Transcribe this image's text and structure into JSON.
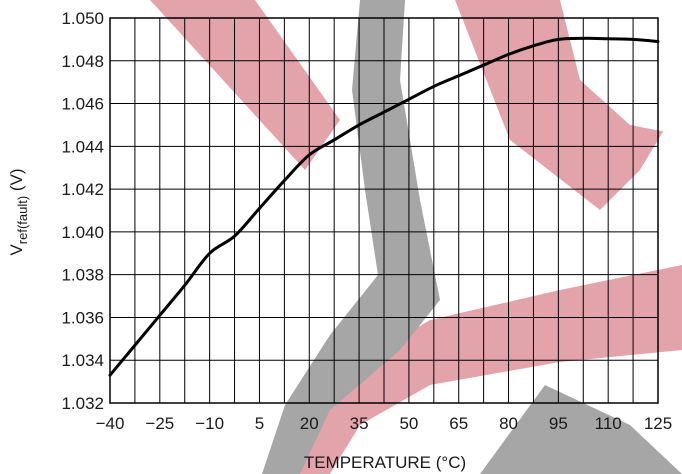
{
  "chart_data": {
    "type": "line",
    "xlabel": "TEMPERATURE (°C)",
    "ylabel_main": "V",
    "ylabel_sub": "ref(fault)",
    "ylabel_unit": " (V)",
    "xlim": [
      -40,
      125
    ],
    "ylim": [
      1.032,
      1.05
    ],
    "x_ticks": [
      -40,
      -25,
      -10,
      5,
      20,
      35,
      50,
      65,
      80,
      95,
      110,
      125
    ],
    "x_tick_labels": [
      "−40",
      "−25",
      "−10",
      "5",
      "20",
      "35",
      "50",
      "65",
      "80",
      "95",
      "110",
      "125"
    ],
    "y_ticks": [
      1.032,
      1.034,
      1.036,
      1.038,
      1.04,
      1.042,
      1.044,
      1.046,
      1.048,
      1.05
    ],
    "y_tick_labels": [
      "1.032",
      "1.034",
      "1.036",
      "1.038",
      "1.040",
      "1.042",
      "1.044",
      "1.046",
      "1.048",
      "1.050"
    ],
    "x_minor_per_major": 2,
    "grid": true,
    "series": [
      {
        "color": "#000000",
        "x": [
          -40,
          -32.5,
          -25,
          -17.5,
          -10,
          -2.5,
          5,
          12.5,
          20,
          27.5,
          35,
          42.5,
          50,
          57.5,
          65,
          72.5,
          80,
          87.5,
          95,
          102.5,
          110,
          117.5,
          125
        ],
        "y": [
          1.0333,
          1.0347,
          1.0361,
          1.0375,
          1.039,
          1.0398,
          1.0411,
          1.0424,
          1.0436,
          1.0443,
          1.045,
          1.0456,
          1.0462,
          1.0468,
          1.0473,
          1.0478,
          1.0483,
          1.0487,
          1.049,
          1.04905,
          1.04903,
          1.049,
          1.0489
        ]
      }
    ]
  },
  "watermark": {
    "colors": {
      "red": "#e3a3ab",
      "gray": "#a6a6a6"
    }
  }
}
